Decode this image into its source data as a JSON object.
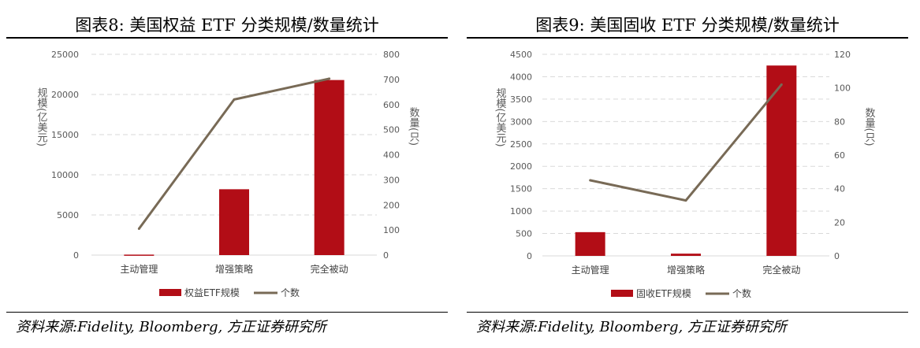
{
  "charts": [
    {
      "title": "图表8:  美国权益 ETF 分类规模/数量统计",
      "source": "资料来源:Fidelity, Bloomberg, 方正证券研究所",
      "chart_data": {
        "type": "bar+line",
        "categories": [
          "主动管理",
          "增强策略",
          "完全被动"
        ],
        "series": [
          {
            "name": "权益ETF规模",
            "type": "bar",
            "axis": "left",
            "values": [
              60,
              8200,
              21800
            ]
          },
          {
            "name": "个数",
            "type": "line",
            "axis": "right",
            "values": [
              105,
              620,
              703
            ]
          }
        ],
        "ylabel": "规模(亿美元)",
        "y2label": "数量(只)",
        "ylim": [
          0,
          25000
        ],
        "y2lim": [
          0,
          800
        ],
        "yticks": [
          0,
          5000,
          10000,
          15000,
          20000,
          25000
        ],
        "y2ticks": [
          0,
          100,
          200,
          300,
          400,
          500,
          600,
          700,
          800
        ],
        "grid": true,
        "legend": "bottom",
        "colors": {
          "bar": "#b20d16",
          "line": "#786a56"
        }
      }
    },
    {
      "title": "图表9:  美国固收 ETF 分类规模/数量统计",
      "source": "资料来源:Fidelity, Bloomberg, 方正证券研究所",
      "chart_data": {
        "type": "bar+line",
        "categories": [
          "主动管理",
          "增强策略",
          "完全被动"
        ],
        "series": [
          {
            "name": "固收ETF规模",
            "type": "bar",
            "axis": "left",
            "values": [
              530,
              50,
              4250
            ]
          },
          {
            "name": "个数",
            "type": "line",
            "axis": "right",
            "values": [
              45,
              33,
              102
            ]
          }
        ],
        "ylabel": "规模(亿美元)",
        "y2label": "数量(只)",
        "ylim": [
          0,
          4500
        ],
        "y2lim": [
          0,
          120
        ],
        "yticks": [
          0,
          500,
          1000,
          1500,
          2000,
          2500,
          3000,
          3500,
          4000,
          4500
        ],
        "y2ticks": [
          0,
          20,
          40,
          60,
          80,
          100,
          120
        ],
        "grid": true,
        "legend": "bottom",
        "colors": {
          "bar": "#b20d16",
          "line": "#786a56"
        }
      }
    }
  ]
}
